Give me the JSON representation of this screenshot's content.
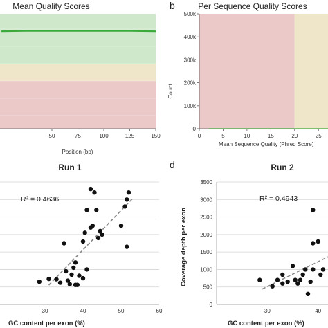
{
  "panel_a": {
    "title": "Mean Quality Scores",
    "xlabel": "Position (bp)",
    "x_ticks": [
      "50",
      "75",
      "100",
      "125",
      "150"
    ]
  },
  "panel_b": {
    "letter": "b",
    "title": "Per Sequence Quality Scores",
    "xlabel": "Mean Sequence Quality (Phred Score)",
    "ylabel": "Count",
    "y_ticks": [
      "0",
      "100k",
      "200k",
      "300k",
      "400k",
      "500k"
    ],
    "x_ticks": [
      "0",
      "5",
      "10",
      "15",
      "20",
      "25"
    ]
  },
  "panel_c": {
    "title": "Run 1",
    "r2": "R² = 0.4636",
    "xlabel": "GC content per exon (%)",
    "x_ticks": [
      "30",
      "40",
      "50",
      "60"
    ]
  },
  "panel_d": {
    "letter": "d",
    "title": "Run 2",
    "r2": "R² = 0.4943",
    "xlabel": "GC content per exon (%)",
    "ylabel": "Coverage depth per exon",
    "y_ticks": [
      "0",
      "500",
      "1000",
      "1500",
      "2000",
      "2500",
      "3000",
      "3500"
    ],
    "x_ticks": [
      "30",
      "40"
    ]
  },
  "colors": {
    "quality_good": "#cfe8cc",
    "quality_ok": "#efe5c9",
    "quality_bad": "#ecc9c9",
    "mean_line": "#3aaa3a",
    "point": "#111111",
    "trend": "#888888",
    "grid": "#d4d4d4"
  },
  "chart_data": [
    {
      "type": "line",
      "title": "Mean Quality Scores",
      "xlabel": "Position (bp)",
      "xlim": [
        0,
        150
      ],
      "bands": [
        "good",
        "ok",
        "bad"
      ],
      "series": [
        {
          "x": [
            1,
            25,
            50,
            75,
            100,
            125,
            150
          ],
          "y": [
            35.5,
            35.6,
            35.6,
            35.6,
            35.6,
            35.6,
            35.5
          ]
        }
      ]
    },
    {
      "type": "line",
      "title": "Per Sequence Quality Scores",
      "xlabel": "Mean Sequence Quality (Phred Score)",
      "ylabel": "Count",
      "xlim": [
        0,
        27
      ],
      "ylim": [
        0,
        500000
      ],
      "bands": [
        "bad",
        "ok"
      ],
      "series": [
        {
          "x": [
            2,
            10,
            20,
            27
          ],
          "y": [
            0,
            0,
            0,
            0
          ]
        }
      ]
    },
    {
      "type": "scatter",
      "title": "Run 1",
      "xlabel": "GC content per exon (%)",
      "xlim": [
        20,
        60
      ],
      "ylim": [
        0,
        3500
      ],
      "annotation": "R² = 0.4636",
      "trendline": true,
      "points": [
        [
          28.5,
          650
        ],
        [
          31,
          730
        ],
        [
          33,
          720
        ],
        [
          34,
          620
        ],
        [
          35,
          1750
        ],
        [
          35.5,
          950
        ],
        [
          36,
          680
        ],
        [
          36.5,
          580
        ],
        [
          37,
          850
        ],
        [
          37.5,
          1050
        ],
        [
          38,
          1200
        ],
        [
          38,
          560
        ],
        [
          38.5,
          560
        ],
        [
          39,
          820
        ],
        [
          40,
          750
        ],
        [
          40,
          1800
        ],
        [
          40.5,
          2050
        ],
        [
          41,
          1000
        ],
        [
          41,
          2700
        ],
        [
          42,
          3300
        ],
        [
          42,
          2200
        ],
        [
          42.5,
          2250
        ],
        [
          43,
          3200
        ],
        [
          43.5,
          2700
        ],
        [
          44,
          1900
        ],
        [
          44.5,
          2100
        ],
        [
          45,
          2000
        ],
        [
          50,
          2250
        ],
        [
          51,
          2800
        ],
        [
          51.5,
          1650
        ],
        [
          51.5,
          3000
        ],
        [
          52,
          3200
        ]
      ]
    },
    {
      "type": "scatter",
      "title": "Run 2",
      "xlabel": "GC content per exon (%)",
      "ylabel": "Coverage depth per exon",
      "xlim": [
        20,
        50
      ],
      "ylim": [
        0,
        3500
      ],
      "annotation": "R² = 0.4943",
      "trendline": true,
      "points": [
        [
          28.5,
          700
        ],
        [
          31,
          520
        ],
        [
          32,
          700
        ],
        [
          33,
          850
        ],
        [
          33,
          600
        ],
        [
          34,
          650
        ],
        [
          35,
          1100
        ],
        [
          35.5,
          700
        ],
        [
          36,
          600
        ],
        [
          36.5,
          700
        ],
        [
          37,
          850
        ],
        [
          37.5,
          1000
        ],
        [
          38,
          300
        ],
        [
          38.5,
          650
        ],
        [
          39,
          1000
        ],
        [
          39,
          2700
        ],
        [
          39,
          1750
        ],
        [
          40,
          1800
        ],
        [
          40.5,
          850
        ],
        [
          41,
          1000
        ]
      ]
    }
  ]
}
